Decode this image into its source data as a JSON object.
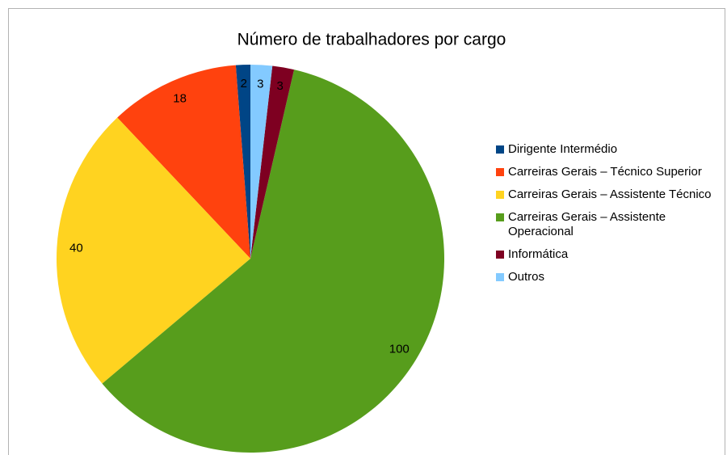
{
  "chart_data": {
    "type": "pie",
    "title": "Número de trabalhadores por cargo",
    "categories": [
      "Dirigente Intermédio",
      "Carreiras Gerais – Técnico Superior",
      "Carreiras Gerais – Assistente Técnico",
      "Carreiras Gerais – Assistente Operacional",
      "Informática",
      "Outros"
    ],
    "values": [
      2,
      18,
      40,
      100,
      3,
      3
    ],
    "colors": [
      "#004586",
      "#ff420e",
      "#ffd320",
      "#579d1c",
      "#7e0021",
      "#83caff"
    ],
    "legend": "right"
  }
}
